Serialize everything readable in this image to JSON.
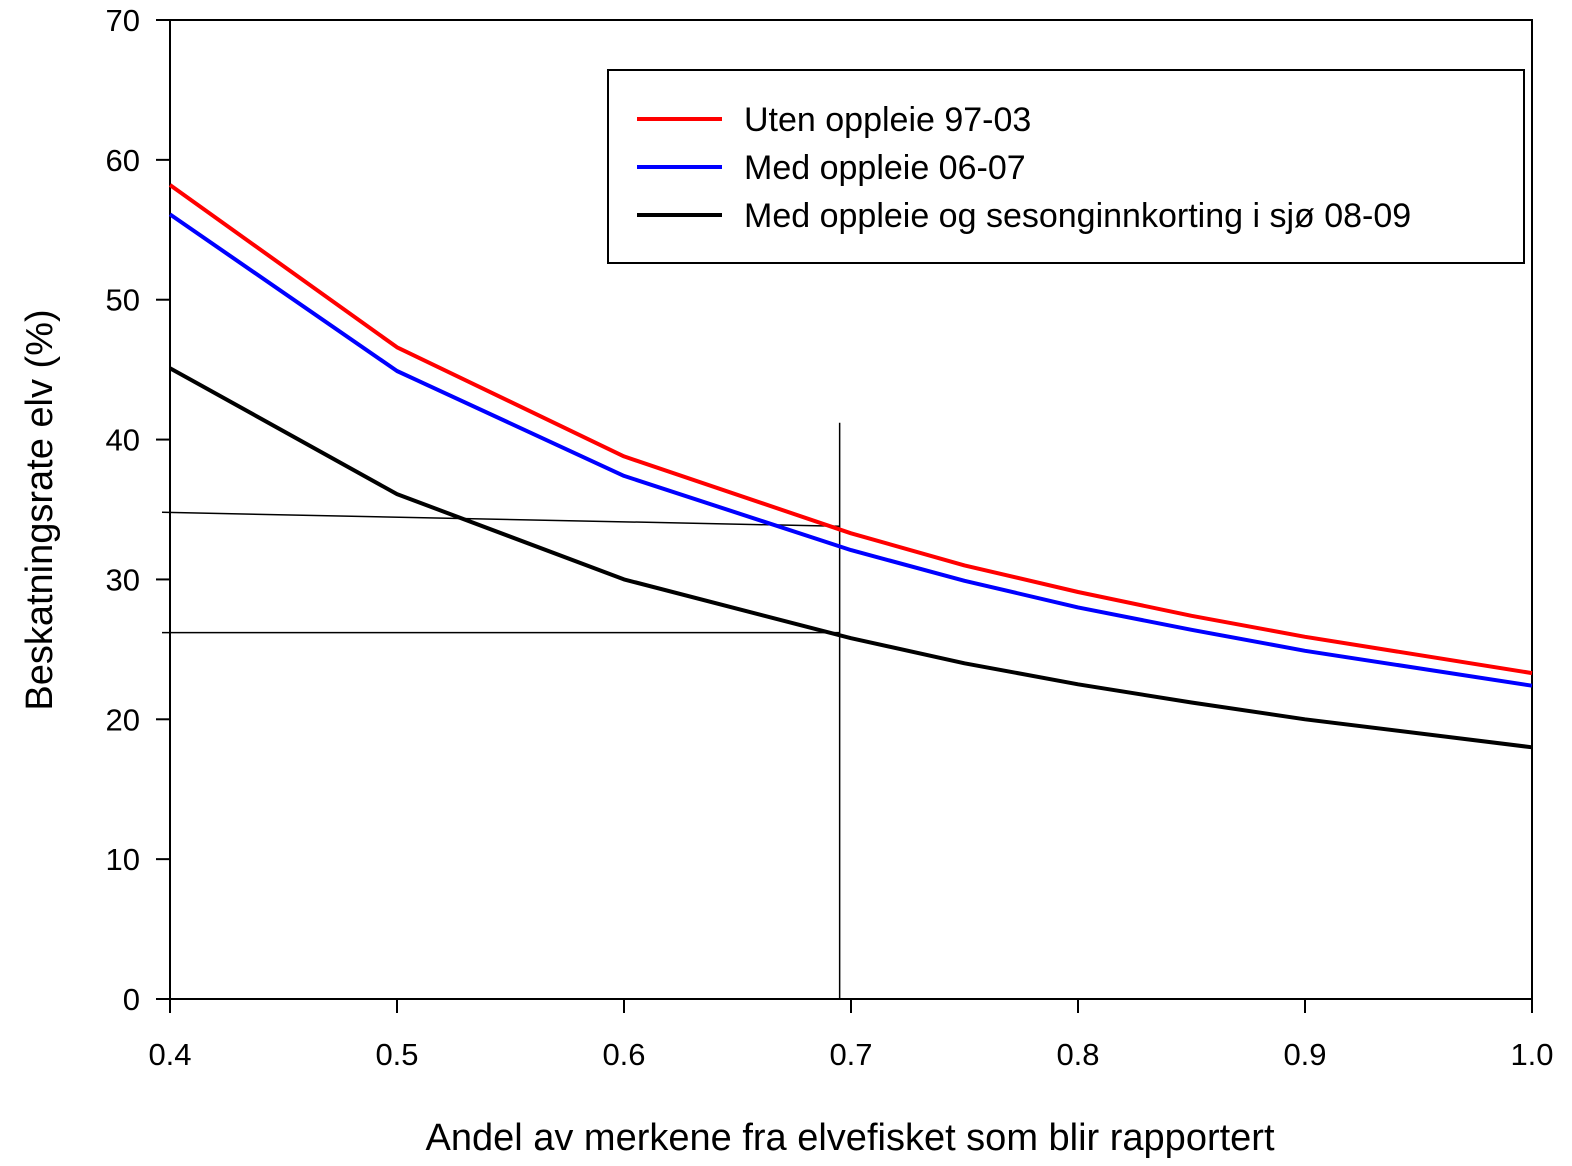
{
  "chart_data": {
    "type": "line",
    "title": "",
    "xlabel": "Andel av merkene fra elvefisket som blir rapportert",
    "ylabel": "Beskatningsrate elv (%)",
    "xlim": [
      0.4,
      1.0
    ],
    "ylim": [
      0,
      70
    ],
    "xticks": [
      0.4,
      0.5,
      0.6,
      0.7,
      0.8,
      0.9,
      1.0
    ],
    "xtick_labels": [
      "0.4",
      "0.5",
      "0.6",
      "0.7",
      "0.8",
      "0.9",
      "1.0"
    ],
    "yticks": [
      0,
      10,
      20,
      30,
      40,
      50,
      60,
      70
    ],
    "ytick_labels": [
      "0",
      "10",
      "20",
      "30",
      "40",
      "50",
      "60",
      "70"
    ],
    "grid": false,
    "legend_position": "top-right",
    "series": [
      {
        "name": "Uten oppleie 97-03",
        "color": "#ff0000",
        "x": [
          0.4,
          0.5,
          0.6,
          0.7,
          0.75,
          0.8,
          0.85,
          0.9,
          1.0
        ],
        "y": [
          58.2,
          46.6,
          38.8,
          33.3,
          31.0,
          29.1,
          27.4,
          25.9,
          23.3
        ]
      },
      {
        "name": "Med oppleie 06-07",
        "color": "#0000ff",
        "x": [
          0.4,
          0.5,
          0.6,
          0.7,
          0.75,
          0.8,
          0.85,
          0.9,
          1.0
        ],
        "y": [
          56.1,
          44.9,
          37.4,
          32.1,
          29.9,
          28.0,
          26.4,
          24.9,
          22.4
        ]
      },
      {
        "name": "Med oppleie og sesonginnkorting i sjø 08-09",
        "color": "#000000",
        "x": [
          0.4,
          0.5,
          0.6,
          0.7,
          0.75,
          0.8,
          0.85,
          0.9,
          1.0
        ],
        "y": [
          45.1,
          36.1,
          30.0,
          25.8,
          24.0,
          22.5,
          21.2,
          20.0,
          18.0
        ]
      }
    ],
    "reference_lines": [
      {
        "kind": "segment",
        "x": [
          0.4,
          0.695
        ],
        "y": [
          34.8,
          33.8
        ]
      },
      {
        "kind": "segment",
        "x": [
          0.4,
          0.695
        ],
        "y": [
          26.2,
          26.2
        ]
      },
      {
        "kind": "segment",
        "x": [
          0.695,
          0.695
        ],
        "y": [
          0,
          41.2
        ]
      }
    ]
  }
}
